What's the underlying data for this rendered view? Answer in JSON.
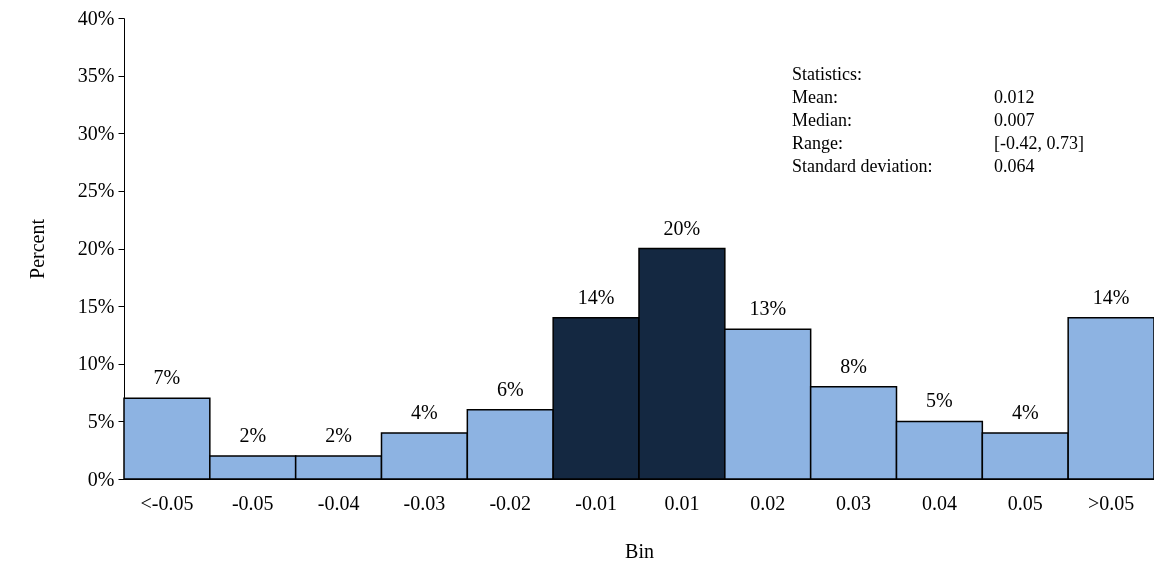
{
  "chart_data": {
    "type": "bar",
    "xlabel": "Bin",
    "ylabel": "Percent",
    "categories": [
      "<-0.05",
      "-0.05",
      "-0.04",
      "-0.03",
      "-0.02",
      "-0.01",
      "0.01",
      "0.02",
      "0.03",
      "0.04",
      "0.05",
      ">0.05"
    ],
    "values": [
      7,
      2,
      2,
      4,
      6,
      14,
      20,
      13,
      8,
      5,
      4,
      14
    ],
    "value_labels": [
      "7%",
      "2%",
      "2%",
      "4%",
      "6%",
      "14%",
      "20%",
      "13%",
      "8%",
      "5%",
      "4%",
      "14%"
    ],
    "colors": [
      "#8db3e2",
      "#8db3e2",
      "#8db3e2",
      "#8db3e2",
      "#8db3e2",
      "#142841",
      "#142841",
      "#8db3e2",
      "#8db3e2",
      "#8db3e2",
      "#8db3e2",
      "#8db3e2"
    ],
    "ylim": [
      0,
      40
    ],
    "yticks": [
      {
        "value": 0,
        "label": "0%"
      },
      {
        "value": 5,
        "label": "5%"
      },
      {
        "value": 10,
        "label": "10%"
      },
      {
        "value": 15,
        "label": "15%"
      },
      {
        "value": 20,
        "label": "20%"
      },
      {
        "value": 25,
        "label": "25%"
      },
      {
        "value": 30,
        "label": "30%"
      },
      {
        "value": 35,
        "label": "35%"
      },
      {
        "value": 40,
        "label": "40%"
      }
    ],
    "grid": false,
    "annotations": [
      "Statistics:",
      "Mean: 0.012",
      "Median: 0.007",
      "Range: [-0.42, 0.73]",
      "Standard deviation: 0.064"
    ]
  }
}
